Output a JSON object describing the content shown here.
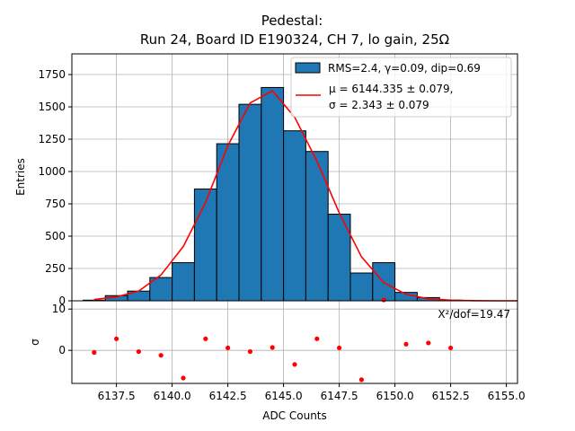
{
  "chart_data": [
    {
      "type": "bar",
      "panel": "histogram-and-fit",
      "title_line1": "Pedestal:",
      "title_line2": "Run 24, Board ID E190324, CH 7, lo gain, 25Ω",
      "ylabel": "Entries",
      "xlim": [
        6135.5,
        6155.5
      ],
      "ylim": [
        0,
        1910
      ],
      "y_ticks": [
        0,
        250,
        500,
        750,
        1000,
        1250,
        1500,
        1750
      ],
      "grid": true,
      "bin_edges": [
        6136,
        6137,
        6138,
        6139,
        6140,
        6141,
        6142,
        6143,
        6144,
        6145,
        6146,
        6147,
        6148,
        6149,
        6150,
        6151,
        6152,
        6153
      ],
      "bin_counts": [
        5,
        40,
        75,
        180,
        295,
        865,
        1215,
        1520,
        1650,
        1315,
        1155,
        670,
        215,
        295,
        65,
        25,
        5
      ],
      "bar_color": "#1f77b4",
      "fit": {
        "x": [
          6136.5,
          6137.5,
          6138.5,
          6139.5,
          6140.5,
          6141.5,
          6142.5,
          6143.5,
          6144.5,
          6145.5,
          6146.5,
          6147.5,
          6148.5,
          6149.5,
          6150.5,
          6151.5,
          6152.5,
          6153.5,
          6154.5,
          6155.5
        ],
        "y": [
          10,
          30,
          75,
          200,
          420,
          760,
          1200,
          1530,
          1625,
          1420,
          1080,
          680,
          340,
          140,
          50,
          15,
          5,
          1,
          0,
          0
        ],
        "color": "#ff0000"
      },
      "legend": {
        "position": "upper right",
        "hist_label": "RMS=2.4, γ=0.09, dip=0.69",
        "fit_label_line1": "μ = 6144.335 ± 0.079,",
        "fit_label_line2": "σ = 2.343 ± 0.079"
      }
    },
    {
      "type": "scatter",
      "panel": "residuals",
      "xlabel": "ADC Counts",
      "ylabel": "σ",
      "xlim": [
        6135.5,
        6155.5
      ],
      "ylim": [
        -8,
        12
      ],
      "x_ticks": [
        6137.5,
        6140.0,
        6142.5,
        6145.0,
        6147.5,
        6150.0,
        6152.5,
        6155.0
      ],
      "x_tick_labels": [
        "6137.5",
        "6140.0",
        "6142.5",
        "6145.0",
        "6147.5",
        "6150.0",
        "6152.5",
        "6155.0"
      ],
      "y_ticks": [
        0,
        10
      ],
      "grid": true,
      "x": [
        6136.5,
        6137.5,
        6138.5,
        6139.5,
        6140.5,
        6141.5,
        6142.5,
        6143.5,
        6144.5,
        6145.5,
        6146.5,
        6147.5,
        6148.5,
        6149.5,
        6150.5,
        6151.5,
        6152.5
      ],
      "y": [
        -0.5,
        2.8,
        -0.3,
        -1.2,
        -6.7,
        2.8,
        0.6,
        -0.3,
        0.7,
        -3.4,
        2.8,
        0.6,
        -7.1,
        12.2,
        1.5,
        1.8,
        0.6
      ],
      "color": "#ff0000",
      "annotation": "X²/dof=19.47"
    }
  ]
}
